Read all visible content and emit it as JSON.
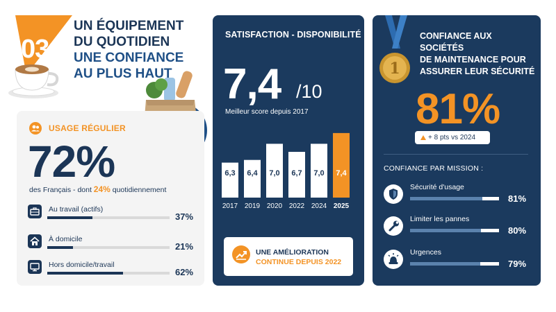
{
  "header": {
    "section_number": "03",
    "title_line1": "UN ÉQUIPEMENT",
    "title_line2": "DU QUOTIDIEN",
    "title_line3": "UNE CONFIANCE",
    "title_line4": "AU PLUS HAUT"
  },
  "usage": {
    "title": "USAGE RÉGULIER",
    "big_value": "72%",
    "subtitle_pre": "des Français - dont ",
    "subtitle_highlight": "24%",
    "subtitle_post": " quotidiennement",
    "rows": [
      {
        "label": "Au travail (actifs)",
        "value": "37%",
        "pct": 37,
        "icon": "briefcase-icon"
      },
      {
        "label": "À domicile",
        "value": "21%",
        "pct": 21,
        "icon": "house-icon"
      },
      {
        "label": "Hors domicile/travail",
        "value": "62%",
        "pct": 62,
        "icon": "monitor-icon"
      }
    ]
  },
  "satisfaction": {
    "title": "SATISFACTION - DISPONIBILITÉ",
    "big_value": "7,4",
    "scale": "/10",
    "subtitle": "Meilleur score depuis 2017",
    "improvement_line1": "UNE AMÉLIORATION",
    "improvement_line2": "CONTINUE DEPUIS 2022"
  },
  "chart_data": {
    "type": "bar",
    "categories": [
      "2017",
      "2019",
      "2020",
      "2022",
      "2024",
      "2025"
    ],
    "values": [
      6.3,
      6.4,
      7.0,
      6.7,
      7.0,
      7.4
    ],
    "value_labels": [
      "6,3",
      "6,4",
      "7,0",
      "6,7",
      "7,0",
      "7,4"
    ],
    "highlight_index": 5,
    "bar_color": "#ffffff",
    "highlight_color": "#f39325",
    "ylim": [
      5,
      7.5
    ]
  },
  "confidence": {
    "title_line1": "CONFIANCE AUX SOCIÉTÉS",
    "title_line2": "DE MAINTENANCE POUR",
    "title_line3": "ASSURER LEUR SÉCURITÉ",
    "medal_number": "1",
    "big_value": "81%",
    "delta": "+ 8 pts vs 2024",
    "mission_title": "CONFIANCE PAR MISSION :",
    "missions": [
      {
        "label": "Sécurité d'usage",
        "value": "81%",
        "pct": 81,
        "icon": "shield-icon"
      },
      {
        "label": "Limiter les pannes",
        "value": "80%",
        "pct": 80,
        "icon": "wrench-icon"
      },
      {
        "label": "Urgences",
        "value": "79%",
        "pct": 79,
        "icon": "siren-icon"
      }
    ]
  },
  "colors": {
    "navy": "#1b3a5e",
    "dark_text": "#1b3556",
    "orange": "#f39325",
    "panel_gray": "#f4f4f4"
  }
}
